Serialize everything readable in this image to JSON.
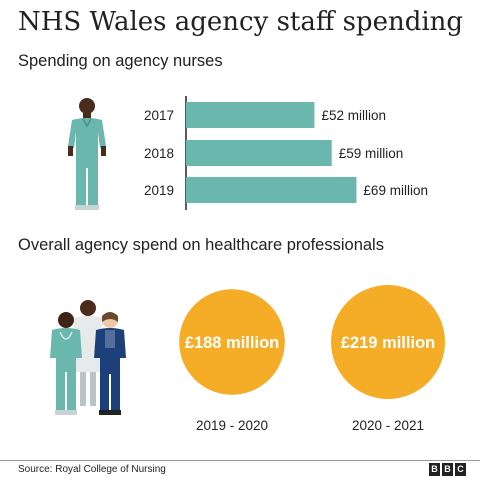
{
  "title": "NHS Wales agency staff spending",
  "section1": {
    "subtitle": "Spending on agency nurses"
  },
  "section2": {
    "subtitle": "Overall agency spend on healthcare professionals"
  },
  "source": "Source: Royal College of Nursing",
  "logo": [
    "B",
    "B",
    "C"
  ],
  "colors": {
    "bar": "#6ab7ae",
    "circle": "#f5ad27",
    "scrubs": "#6ab7ae",
    "navy": "#1d3f7a"
  },
  "icons": [
    "nurse-figure-icon",
    "healthcare-staff-group-icon"
  ],
  "chart_data": [
    {
      "type": "bar",
      "orientation": "horizontal",
      "categories": [
        "2017",
        "2018",
        "2019"
      ],
      "values": [
        52,
        59,
        69
      ],
      "labels": [
        "£52 million",
        "£59 million",
        "£69 million"
      ]
    },
    {
      "type": "bubble",
      "categories": [
        "2019 - 2020",
        "2020 - 2021"
      ],
      "values": [
        188,
        219
      ],
      "labels": [
        "£188 million",
        "£219 million"
      ]
    }
  ]
}
